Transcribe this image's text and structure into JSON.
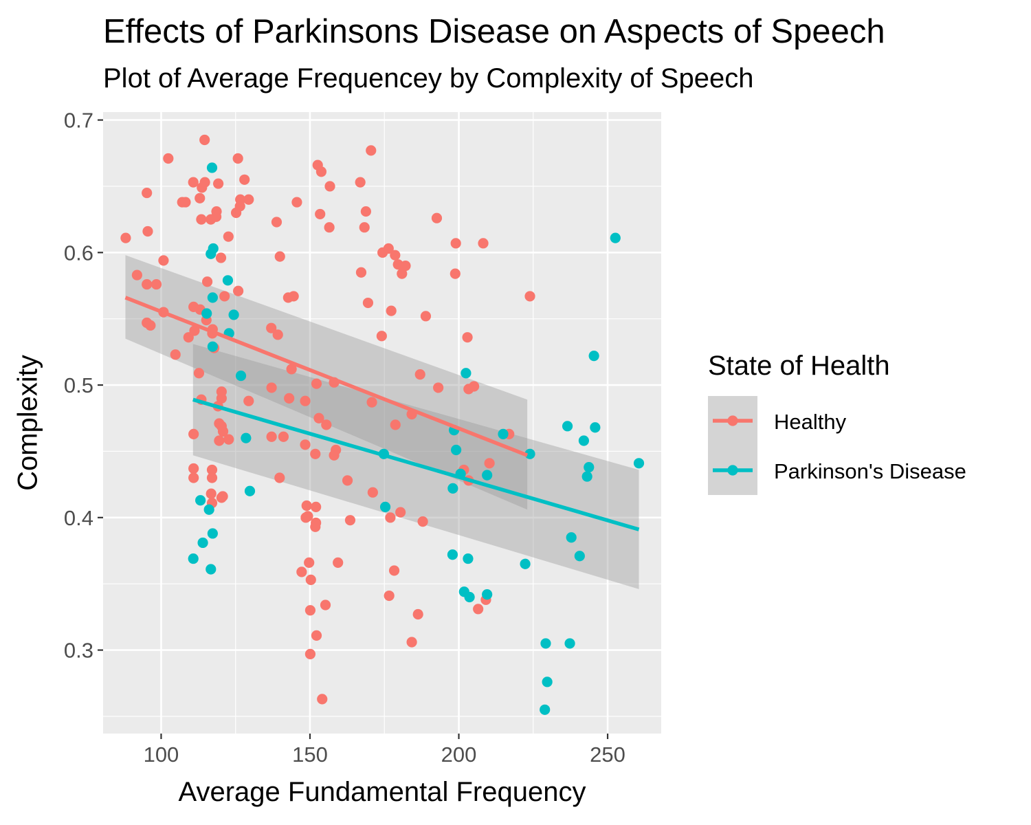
{
  "chart_data": {
    "type": "scatter",
    "title": "Effects of Parkinsons Disease on Aspects of Speech",
    "subtitle": "Plot of Average Frequencey by Complexity of Speech",
    "xlabel": "Average Fundamental Frequency",
    "ylabel": "Complexity",
    "xlim": [
      80.5,
      268
    ],
    "ylim": [
      0.237,
      0.706
    ],
    "x_ticks": [
      100,
      150,
      200,
      250
    ],
    "x_tick_labels": [
      "100",
      "150",
      "200",
      "250"
    ],
    "y_ticks": [
      0.3,
      0.4,
      0.5,
      0.6,
      0.7
    ],
    "y_tick_labels": [
      "0.3",
      "0.4",
      "0.5",
      "0.6",
      "0.7"
    ],
    "grid": true,
    "legend": {
      "title": "State of Health",
      "position": "right",
      "entries": [
        "Healthy",
        "Parkinson's Disease"
      ]
    },
    "series": [
      {
        "name": "Healthy",
        "color": "#F8766D",
        "points": [
          [
            88.1,
            0.611
          ],
          [
            91.9,
            0.583
          ],
          [
            95.2,
            0.645
          ],
          [
            95.5,
            0.616
          ],
          [
            95.2,
            0.576
          ],
          [
            98.4,
            0.576
          ],
          [
            95.2,
            0.547
          ],
          [
            96.4,
            0.545
          ],
          [
            100.8,
            0.594
          ],
          [
            100.8,
            0.555
          ],
          [
            102.4,
            0.671
          ],
          [
            104.8,
            0.523
          ],
          [
            107.1,
            0.638
          ],
          [
            108.2,
            0.638
          ],
          [
            109.2,
            0.536
          ],
          [
            110.8,
            0.653
          ],
          [
            110.9,
            0.559
          ],
          [
            111.2,
            0.541
          ],
          [
            112.7,
            0.509
          ],
          [
            113,
            0.641
          ],
          [
            113.1,
            0.557
          ],
          [
            113.5,
            0.489
          ],
          [
            113.5,
            0.625
          ],
          [
            113.7,
            0.649
          ],
          [
            114.7,
            0.653
          ],
          [
            114.6,
            0.685
          ],
          [
            115.2,
            0.549
          ],
          [
            115.5,
            0.578
          ],
          [
            116.7,
            0.625
          ],
          [
            116.8,
            0.418
          ],
          [
            117.1,
            0.436
          ],
          [
            117.1,
            0.43
          ],
          [
            117.1,
            0.411
          ],
          [
            117.2,
            0.539
          ],
          [
            117.3,
            0.542
          ],
          [
            117.8,
            0.528
          ],
          [
            118.5,
            0.627
          ],
          [
            118.6,
            0.631
          ],
          [
            119.1,
            0.484
          ],
          [
            119.2,
            0.652
          ],
          [
            119.5,
            0.471
          ],
          [
            119.5,
            0.458
          ],
          [
            120.1,
            0.596
          ],
          [
            120.3,
            0.49
          ],
          [
            120.3,
            0.495
          ],
          [
            120.3,
            0.415
          ],
          [
            120.3,
            0.469
          ],
          [
            120.7,
            0.416
          ],
          [
            120.8,
            0.465
          ],
          [
            121.3,
            0.567
          ],
          [
            122.6,
            0.612
          ],
          [
            122.7,
            0.459
          ],
          [
            125.2,
            0.63
          ],
          [
            125.8,
            0.671
          ],
          [
            125.9,
            0.571
          ],
          [
            126.6,
            0.64
          ],
          [
            126.5,
            0.635
          ],
          [
            128,
            0.655
          ],
          [
            129.4,
            0.64
          ],
          [
            129.4,
            0.488
          ],
          [
            110.9,
            0.463
          ],
          [
            110.9,
            0.437
          ],
          [
            110.9,
            0.43
          ],
          [
            137,
            0.543
          ],
          [
            137.1,
            0.498
          ],
          [
            137.1,
            0.461
          ],
          [
            138.8,
            0.623
          ],
          [
            139.2,
            0.538
          ],
          [
            139.8,
            0.43
          ],
          [
            139.9,
            0.597
          ],
          [
            141.1,
            0.461
          ],
          [
            142.7,
            0.566
          ],
          [
            143,
            0.49
          ],
          [
            143.8,
            0.512
          ],
          [
            144.5,
            0.567
          ],
          [
            145.6,
            0.638
          ],
          [
            147.2,
            0.359
          ],
          [
            148.4,
            0.488
          ],
          [
            148.4,
            0.455
          ],
          [
            148.6,
            0.4
          ],
          [
            148.9,
            0.409
          ],
          [
            149.3,
            0.401
          ],
          [
            149.7,
            0.366
          ],
          [
            150.1,
            0.33
          ],
          [
            150.1,
            0.297
          ],
          [
            150.3,
            0.353
          ],
          [
            152,
            0.396
          ],
          [
            151.8,
            0.448
          ],
          [
            151.8,
            0.393
          ],
          [
            152,
            0.408
          ],
          [
            152.2,
            0.501
          ],
          [
            152.2,
            0.311
          ],
          [
            152.6,
            0.666
          ],
          [
            153,
            0.475
          ],
          [
            153.4,
            0.629
          ],
          [
            153.8,
            0.661
          ],
          [
            154.1,
            0.263
          ],
          [
            155.2,
            0.334
          ],
          [
            155.5,
            0.47
          ],
          [
            156.5,
            0.619
          ],
          [
            156.7,
            0.65
          ],
          [
            158.1,
            0.502
          ],
          [
            158.1,
            0.447
          ],
          [
            158.7,
            0.451
          ],
          [
            159.4,
            0.366
          ],
          [
            162.6,
            0.428
          ],
          [
            163.5,
            0.398
          ],
          [
            166.9,
            0.653
          ],
          [
            167.2,
            0.585
          ],
          [
            168.3,
            0.619
          ],
          [
            168.8,
            0.631
          ],
          [
            169.5,
            0.562
          ],
          [
            170.5,
            0.677
          ],
          [
            170.8,
            0.487
          ],
          [
            171.1,
            0.419
          ],
          [
            174.1,
            0.537
          ],
          [
            174.4,
            0.6
          ],
          [
            176.4,
            0.603
          ],
          [
            176.6,
            0.341
          ],
          [
            177,
            0.4
          ],
          [
            177.3,
            0.556
          ],
          [
            178.6,
            0.598
          ],
          [
            178.3,
            0.36
          ],
          [
            178.7,
            0.47
          ],
          [
            179.6,
            0.591
          ],
          [
            180.4,
            0.404
          ],
          [
            180.9,
            0.584
          ],
          [
            182.1,
            0.59
          ],
          [
            184.2,
            0.478
          ],
          [
            184.2,
            0.306
          ],
          [
            186.3,
            0.327
          ],
          [
            187,
            0.508
          ],
          [
            187.9,
            0.397
          ],
          [
            188.9,
            0.552
          ],
          [
            192.6,
            0.626
          ],
          [
            193.1,
            0.498
          ],
          [
            198.8,
            0.584
          ],
          [
            199,
            0.607
          ],
          [
            201.7,
            0.436
          ],
          [
            202.9,
            0.536
          ],
          [
            203.3,
            0.497
          ],
          [
            203.3,
            0.428
          ],
          [
            205.1,
            0.499
          ],
          [
            206.5,
            0.331
          ],
          [
            208.2,
            0.607
          ],
          [
            209.1,
            0.338
          ],
          [
            210.3,
            0.441
          ],
          [
            216.9,
            0.463
          ],
          [
            223.9,
            0.567
          ]
        ],
        "trend": {
          "x": [
            88,
            223
          ],
          "y": [
            0.566,
            0.447
          ],
          "se_lower": [
            0.535,
            0.406
          ],
          "se_upper": [
            0.598,
            0.489
          ]
        }
      },
      {
        "name": "Parkinson's Disease",
        "color": "#00BFC4",
        "points": [
          [
            110.8,
            0.369
          ],
          [
            113.2,
            0.413
          ],
          [
            114,
            0.381
          ],
          [
            115.3,
            0.554
          ],
          [
            116.1,
            0.406
          ],
          [
            116.7,
            0.599
          ],
          [
            116.7,
            0.361
          ],
          [
            117.1,
            0.664
          ],
          [
            117.3,
            0.566
          ],
          [
            117.3,
            0.529
          ],
          [
            117.3,
            0.388
          ],
          [
            117.5,
            0.603
          ],
          [
            122.4,
            0.579
          ],
          [
            122.8,
            0.539
          ],
          [
            124.4,
            0.553
          ],
          [
            126.8,
            0.507
          ],
          [
            128.5,
            0.46
          ],
          [
            129.8,
            0.42
          ],
          [
            174.8,
            0.448
          ],
          [
            175.3,
            0.408
          ],
          [
            198,
            0.422
          ],
          [
            197.9,
            0.372
          ],
          [
            198.4,
            0.466
          ],
          [
            199.1,
            0.451
          ],
          [
            200.6,
            0.433
          ],
          [
            202.4,
            0.509
          ],
          [
            201.8,
            0.344
          ],
          [
            203.1,
            0.369
          ],
          [
            203.6,
            0.34
          ],
          [
            209.5,
            0.432
          ],
          [
            209.5,
            0.342
          ],
          [
            214.9,
            0.463
          ],
          [
            222.3,
            0.365
          ],
          [
            223.9,
            0.448
          ],
          [
            228.9,
            0.255
          ],
          [
            229.2,
            0.305
          ],
          [
            229.7,
            0.276
          ],
          [
            236.5,
            0.469
          ],
          [
            237.3,
            0.305
          ],
          [
            237.8,
            0.385
          ],
          [
            240.6,
            0.371
          ],
          [
            242,
            0.458
          ],
          [
            243.1,
            0.431
          ],
          [
            243.7,
            0.438
          ],
          [
            245.4,
            0.522
          ],
          [
            245.8,
            0.468
          ],
          [
            252.6,
            0.611
          ],
          [
            260.5,
            0.441
          ]
        ],
        "trend": {
          "x": [
            110.7,
            260.5
          ],
          "y": [
            0.489,
            0.391
          ],
          "se_lower": [
            0.447,
            0.346
          ],
          "se_upper": [
            0.531,
            0.436
          ]
        }
      }
    ]
  }
}
